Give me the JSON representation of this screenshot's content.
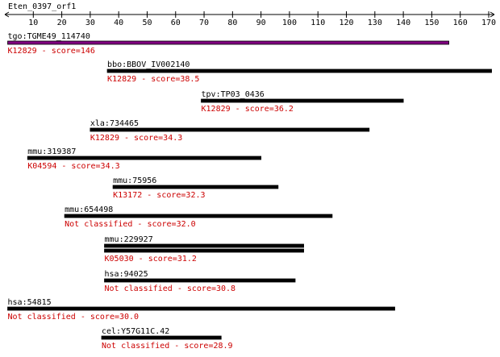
{
  "chart_data": {
    "type": "alignment",
    "title": "Eten_0397_orf1",
    "xlim": [
      0,
      170
    ],
    "xticks": [
      10,
      20,
      30,
      40,
      50,
      60,
      70,
      80,
      90,
      100,
      110,
      120,
      130,
      140,
      150,
      160,
      170
    ],
    "series": [
      {
        "name": "tgo:TGME49_114740",
        "label": "K12829 - score=146",
        "color": "#800080",
        "values": [
          [
            1,
            156
          ]
        ]
      },
      {
        "name": "bbo:BBOV_IV002140",
        "label": "K12829 - score=38.5",
        "color": "#000000",
        "values": [
          [
            36,
            171
          ]
        ]
      },
      {
        "name": "tpv:TP03_0436",
        "label": "K12829 - score=36.2",
        "color": "#000000",
        "values": [
          [
            69,
            140
          ]
        ]
      },
      {
        "name": "xla:734465",
        "label": "K12829 - score=34.3",
        "color": "#000000",
        "values": [
          [
            30,
            128
          ]
        ]
      },
      {
        "name": "mmu:319387",
        "label": "K04594 - score=34.3",
        "color": "#000000",
        "values": [
          [
            8,
            90
          ]
        ]
      },
      {
        "name": "mmu:75956",
        "label": "K13172 - score=32.3",
        "color": "#000000",
        "values": [
          [
            38,
            96
          ]
        ]
      },
      {
        "name": "mmu:654498",
        "label": "Not classified - score=32.0",
        "color": "#000000",
        "values": [
          [
            21,
            115
          ]
        ]
      },
      {
        "name": "mmu:229927",
        "label": "K05030 - score=31.2",
        "color": "#000000",
        "values": [
          [
            35,
            105
          ],
          [
            35,
            105
          ]
        ]
      },
      {
        "name": "hsa:94025",
        "label": "Not classified - score=30.8",
        "color": "#000000",
        "values": [
          [
            35,
            102
          ]
        ]
      },
      {
        "name": "hsa:54815",
        "label": "Not classified - score=30.0",
        "color": "#000000",
        "values": [
          [
            1,
            137
          ]
        ]
      },
      {
        "name": "cel:Y57G11C.42",
        "label": "Not classified - score=28.9",
        "color": "#000000",
        "values": [
          [
            34,
            76
          ]
        ]
      }
    ]
  }
}
